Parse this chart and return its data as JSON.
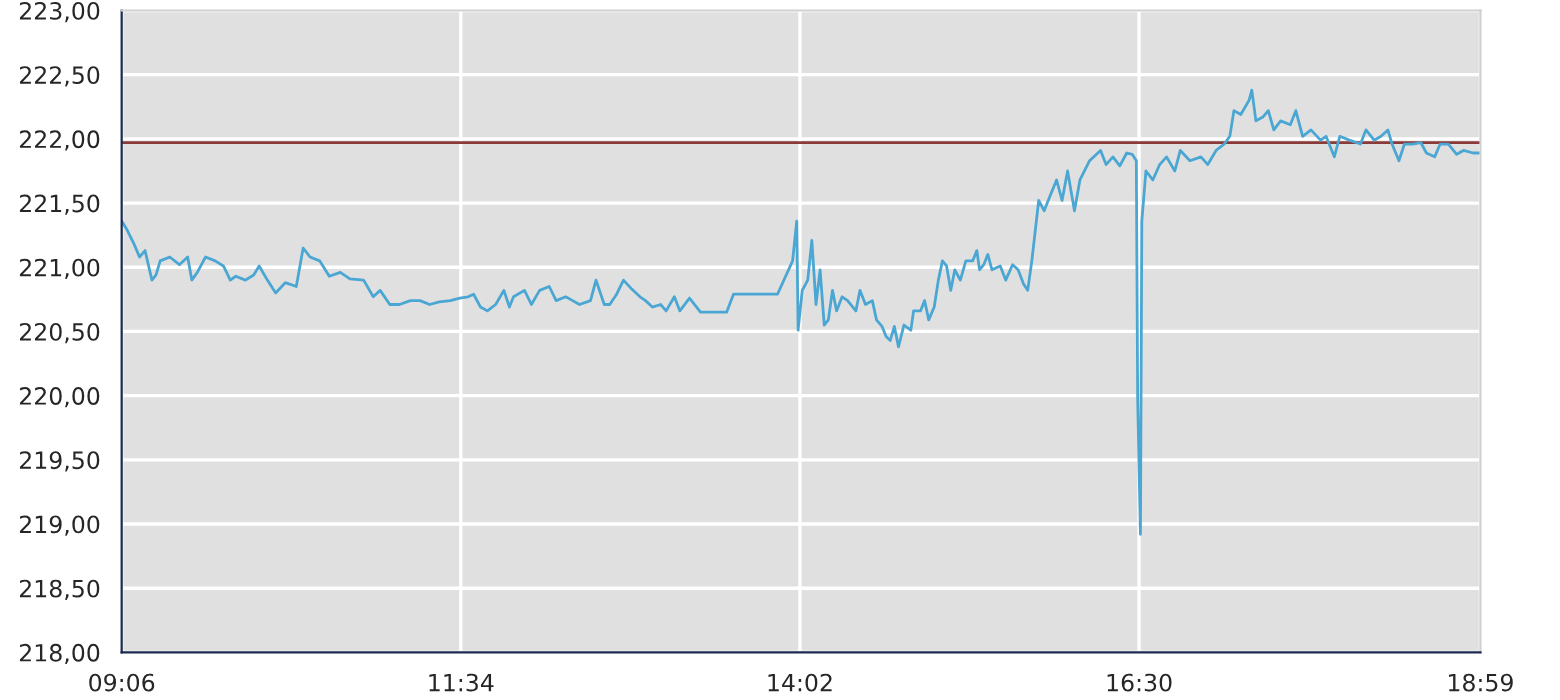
{
  "chart_data": {
    "type": "line",
    "x": [
      9.1,
      9.14,
      9.19,
      9.23,
      9.27,
      9.32,
      9.35,
      9.38,
      9.45,
      9.52,
      9.58,
      9.61,
      9.65,
      9.71,
      9.78,
      9.84,
      9.89,
      9.93,
      10.0,
      10.06,
      10.1,
      10.16,
      10.22,
      10.29,
      10.37,
      10.42,
      10.47,
      10.54,
      10.61,
      10.69,
      10.76,
      10.86,
      10.93,
      10.98,
      11.05,
      11.12,
      11.2,
      11.27,
      11.34,
      11.41,
      11.49,
      11.56,
      11.62,
      11.66,
      11.71,
      11.76,
      11.82,
      11.88,
      11.92,
      11.95,
      12.03,
      12.08,
      12.14,
      12.21,
      12.26,
      12.33,
      12.38,
      12.43,
      12.51,
      12.55,
      12.61,
      12.65,
      12.7,
      12.75,
      12.81,
      12.87,
      12.91,
      12.96,
      13.02,
      13.06,
      13.12,
      13.16,
      13.23,
      13.31,
      13.5,
      13.55,
      13.87,
      13.98,
      14.01,
      14.02,
      14.05,
      14.09,
      14.12,
      14.15,
      14.18,
      14.21,
      14.24,
      14.27,
      14.3,
      14.34,
      14.38,
      14.44,
      14.47,
      14.51,
      14.56,
      14.59,
      14.63,
      14.66,
      14.69,
      14.72,
      14.75,
      14.79,
      14.84,
      14.86,
      14.91,
      14.94,
      14.97,
      15.01,
      15.04,
      15.07,
      15.1,
      15.13,
      15.16,
      15.2,
      15.24,
      15.29,
      15.32,
      15.34,
      15.37,
      15.4,
      15.43,
      15.49,
      15.53,
      15.58,
      15.62,
      15.66,
      15.69,
      15.72,
      15.77,
      15.81,
      15.85,
      15.9,
      15.94,
      15.98,
      16.03,
      16.07,
      16.14,
      16.22,
      16.26,
      16.31,
      16.36,
      16.41,
      16.45,
      16.48,
      16.49,
      16.51,
      16.52,
      16.55,
      16.6,
      16.65,
      16.7,
      16.76,
      16.8,
      16.87,
      16.95,
      17.0,
      17.06,
      17.12,
      17.16,
      17.19,
      17.24,
      17.3,
      17.32,
      17.35,
      17.4,
      17.44,
      17.48,
      17.53,
      17.6,
      17.64,
      17.69,
      17.75,
      17.82,
      17.86,
      17.92,
      17.96,
      18.03,
      18.11,
      18.15,
      18.21,
      18.26,
      18.31,
      18.34,
      18.39,
      18.43,
      18.49,
      18.55,
      18.59,
      18.65,
      18.69,
      18.75,
      18.81,
      18.86,
      18.93,
      18.98
    ],
    "series": [
      {
        "color": "#4aa6d2",
        "values": [
          221.36,
          221.29,
          221.18,
          221.08,
          221.13,
          220.9,
          220.94,
          221.05,
          221.08,
          221.02,
          221.08,
          220.9,
          220.96,
          221.08,
          221.05,
          221.01,
          220.9,
          220.93,
          220.9,
          220.94,
          221.01,
          220.9,
          220.8,
          220.88,
          220.85,
          221.15,
          221.08,
          221.05,
          220.93,
          220.96,
          220.91,
          220.9,
          220.77,
          220.82,
          220.71,
          220.71,
          220.74,
          220.74,
          220.71,
          220.73,
          220.74,
          220.76,
          220.77,
          220.79,
          220.69,
          220.66,
          220.71,
          220.82,
          220.69,
          220.77,
          220.82,
          220.71,
          220.82,
          220.85,
          220.74,
          220.77,
          220.74,
          220.71,
          220.74,
          220.9,
          220.71,
          220.71,
          220.79,
          220.9,
          220.83,
          220.77,
          220.74,
          220.69,
          220.71,
          220.66,
          220.77,
          220.66,
          220.76,
          220.65,
          220.65,
          220.79,
          220.79,
          221.05,
          221.36,
          220.51,
          220.82,
          220.9,
          221.21,
          220.71,
          220.98,
          220.55,
          220.59,
          220.82,
          220.66,
          220.77,
          220.74,
          220.66,
          220.82,
          220.71,
          220.74,
          220.59,
          220.54,
          220.46,
          220.43,
          220.54,
          220.38,
          220.55,
          220.51,
          220.66,
          220.66,
          220.74,
          220.59,
          220.69,
          220.9,
          221.05,
          221.01,
          220.82,
          220.98,
          220.9,
          221.05,
          221.05,
          221.13,
          220.98,
          221.02,
          221.1,
          220.98,
          221.01,
          220.9,
          221.02,
          220.98,
          220.87,
          220.82,
          221.05,
          221.52,
          221.44,
          221.55,
          221.68,
          221.52,
          221.75,
          221.44,
          221.68,
          221.83,
          221.91,
          221.8,
          221.86,
          221.79,
          221.89,
          221.88,
          221.83,
          219.96,
          218.92,
          221.36,
          221.75,
          221.68,
          221.8,
          221.86,
          221.75,
          221.91,
          221.83,
          221.86,
          221.8,
          221.91,
          221.96,
          222.02,
          222.22,
          222.19,
          222.3,
          222.38,
          222.14,
          222.17,
          222.22,
          222.07,
          222.14,
          222.11,
          222.22,
          222.02,
          222.07,
          221.99,
          222.02,
          221.86,
          222.02,
          221.99,
          221.96,
          222.07,
          221.99,
          222.02,
          222.07,
          221.96,
          221.83,
          221.96,
          221.96,
          221.97,
          221.89,
          221.86,
          221.96,
          221.96,
          221.88,
          221.91,
          221.89,
          221.89
        ]
      }
    ],
    "xlim": [
      9.1,
      18.983
    ],
    "xticks": [
      {
        "value": 9.1,
        "label": "09:06"
      },
      {
        "value": 11.5667,
        "label": "11:34"
      },
      {
        "value": 14.0333,
        "label": "14:02"
      },
      {
        "value": 16.5,
        "label": "16:30"
      },
      {
        "value": 18.983,
        "label": "18:59"
      }
    ],
    "ylim": [
      218,
      223
    ],
    "yticks": [
      {
        "value": 218,
        "label": "218,00"
      },
      {
        "value": 218.5,
        "label": "218,50"
      },
      {
        "value": 219,
        "label": "219,00"
      },
      {
        "value": 219.5,
        "label": "219,50"
      },
      {
        "value": 220,
        "label": "220,00"
      },
      {
        "value": 220.5,
        "label": "220,50"
      },
      {
        "value": 221,
        "label": "221,00"
      },
      {
        "value": 221.5,
        "label": "221,50"
      },
      {
        "value": 222,
        "label": "222,00"
      },
      {
        "value": 222.5,
        "label": "222,50"
      },
      {
        "value": 223,
        "label": "223,00"
      }
    ],
    "ref_lines": [
      {
        "axis": "y",
        "value": 221.97,
        "color": "#8b3a3a"
      }
    ],
    "grid": true
  }
}
